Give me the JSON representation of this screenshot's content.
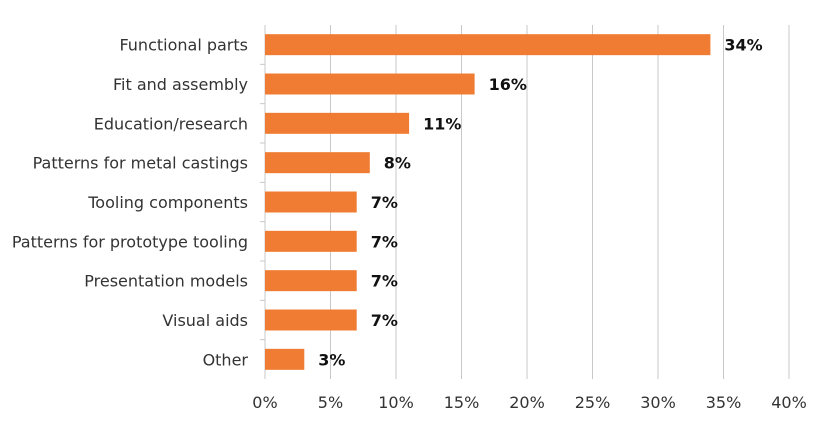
{
  "chart_data": {
    "type": "bar",
    "orientation": "horizontal",
    "title": "",
    "xlabel": "",
    "ylabel": "",
    "categories": [
      "Functional parts",
      "Fit and assembly",
      "Education/research",
      "Patterns for metal castings",
      "Tooling components",
      "Patterns for prototype tooling",
      "Presentation models",
      "Visual aids",
      "Other"
    ],
    "values": [
      34,
      16,
      11,
      8,
      7,
      7,
      7,
      7,
      3
    ],
    "value_labels": [
      "34%",
      "16%",
      "11%",
      "8%",
      "7%",
      "7%",
      "7%",
      "7%",
      "3%"
    ],
    "xlim": [
      0,
      40
    ],
    "xticks": [
      0,
      5,
      10,
      15,
      20,
      25,
      30,
      35,
      40
    ],
    "xtick_labels": [
      "0%",
      "5%",
      "10%",
      "15%",
      "20%",
      "25%",
      "30%",
      "35%",
      "40%"
    ],
    "grid": true,
    "bar_color": "#f07c33",
    "grid_color": "#c8c8c8"
  }
}
